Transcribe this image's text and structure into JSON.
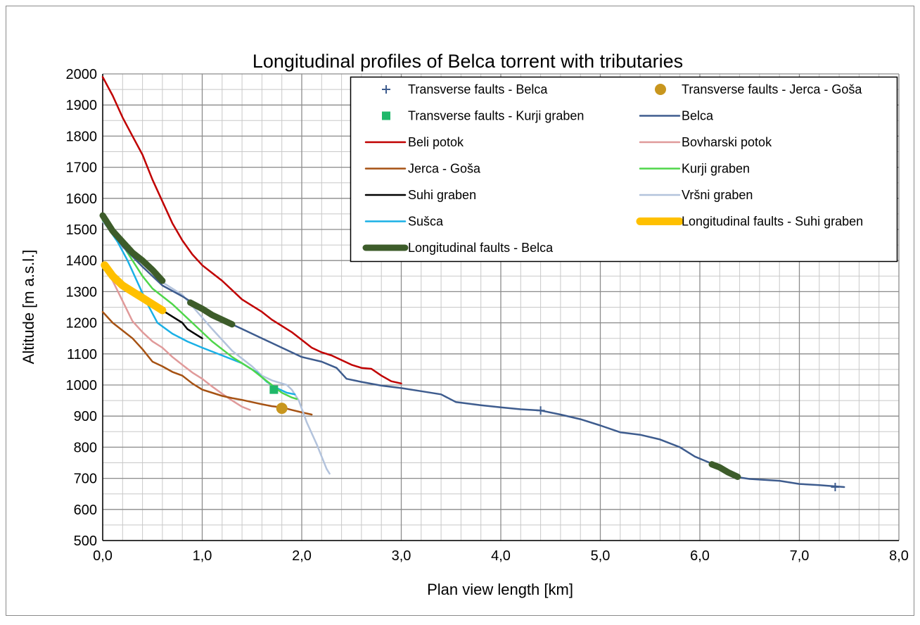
{
  "chart_data": {
    "type": "line",
    "title": "Longitudinal profiles of Belca torrent with tributaries",
    "xlabel": "Plan view length [km]",
    "ylabel": "Altitude [m a.s.l.]",
    "xlim": [
      0,
      8
    ],
    "ylim": [
      500,
      2000
    ],
    "x_ticks": [
      0,
      1,
      2,
      3,
      4,
      5,
      6,
      7,
      8
    ],
    "x_tick_labels": [
      "0,0",
      "1,0",
      "2,0",
      "3,0",
      "4,0",
      "5,0",
      "6,0",
      "7,0",
      "8,0"
    ],
    "y_ticks": [
      500,
      600,
      700,
      800,
      900,
      1000,
      1100,
      1200,
      1300,
      1400,
      1500,
      1600,
      1700,
      1800,
      1900,
      2000
    ],
    "y_tick_labels": [
      "500",
      "600",
      "700",
      "800",
      "900",
      "1000",
      "1100",
      "1200",
      "1300",
      "1400",
      "1500",
      "1600",
      "1700",
      "1800",
      "1900",
      "2000"
    ],
    "grid": true,
    "minor_grid": true,
    "legend_position": "top-right",
    "series": [
      {
        "name": "Transverse faults - Belca",
        "kind": "marker",
        "marker": "plus",
        "color": "#3e5c8e",
        "points": [
          [
            4.4,
            918
          ],
          [
            7.36,
            672
          ]
        ]
      },
      {
        "name": "Transverse faults - Jerca - Goša",
        "kind": "marker",
        "marker": "circle",
        "color": "#c8961e",
        "points": [
          [
            1.8,
            925
          ]
        ]
      },
      {
        "name": "Transverse faults - Kurji graben",
        "kind": "marker",
        "marker": "square",
        "color": "#1fb86a",
        "points": [
          [
            1.72,
            985
          ]
        ]
      },
      {
        "name": "Belca",
        "kind": "line",
        "color": "#3e5c8e",
        "width": 2.5,
        "points": [
          [
            0,
            1535
          ],
          [
            0.2,
            1445
          ],
          [
            0.4,
            1380
          ],
          [
            0.6,
            1320
          ],
          [
            0.8,
            1285
          ],
          [
            1.0,
            1245
          ],
          [
            1.2,
            1210
          ],
          [
            1.4,
            1180
          ],
          [
            1.6,
            1150
          ],
          [
            1.8,
            1120
          ],
          [
            2.0,
            1090
          ],
          [
            2.2,
            1075
          ],
          [
            2.35,
            1055
          ],
          [
            2.45,
            1020
          ],
          [
            2.6,
            1010
          ],
          [
            2.8,
            998
          ],
          [
            3.0,
            990
          ],
          [
            3.2,
            980
          ],
          [
            3.4,
            970
          ],
          [
            3.55,
            945
          ],
          [
            3.8,
            935
          ],
          [
            4.0,
            928
          ],
          [
            4.2,
            922
          ],
          [
            4.4,
            918
          ],
          [
            4.6,
            905
          ],
          [
            4.8,
            890
          ],
          [
            5.0,
            870
          ],
          [
            5.2,
            848
          ],
          [
            5.4,
            840
          ],
          [
            5.6,
            825
          ],
          [
            5.8,
            800
          ],
          [
            5.95,
            770
          ],
          [
            6.1,
            750
          ],
          [
            6.2,
            735
          ],
          [
            6.35,
            705
          ],
          [
            6.5,
            698
          ],
          [
            6.8,
            692
          ],
          [
            7.0,
            682
          ],
          [
            7.2,
            678
          ],
          [
            7.45,
            672
          ]
        ]
      },
      {
        "name": "Beli potok",
        "kind": "line",
        "color": "#c00000",
        "width": 2.5,
        "points": [
          [
            0,
            1990
          ],
          [
            0.1,
            1930
          ],
          [
            0.2,
            1860
          ],
          [
            0.3,
            1800
          ],
          [
            0.4,
            1740
          ],
          [
            0.5,
            1660
          ],
          [
            0.6,
            1590
          ],
          [
            0.7,
            1520
          ],
          [
            0.8,
            1465
          ],
          [
            0.9,
            1420
          ],
          [
            1.0,
            1385
          ],
          [
            1.1,
            1360
          ],
          [
            1.2,
            1335
          ],
          [
            1.3,
            1305
          ],
          [
            1.4,
            1275
          ],
          [
            1.5,
            1255
          ],
          [
            1.6,
            1235
          ],
          [
            1.7,
            1210
          ],
          [
            1.8,
            1190
          ],
          [
            1.9,
            1170
          ],
          [
            2.0,
            1145
          ],
          [
            2.1,
            1120
          ],
          [
            2.2,
            1105
          ],
          [
            2.3,
            1095
          ],
          [
            2.4,
            1080
          ],
          [
            2.5,
            1065
          ],
          [
            2.6,
            1055
          ],
          [
            2.7,
            1052
          ],
          [
            2.8,
            1030
          ],
          [
            2.9,
            1012
          ],
          [
            3.0,
            1005
          ]
        ]
      },
      {
        "name": "Bovharski potok",
        "kind": "line",
        "color": "#e09a9a",
        "width": 2.5,
        "points": [
          [
            0,
            1385
          ],
          [
            0.1,
            1335
          ],
          [
            0.2,
            1270
          ],
          [
            0.3,
            1205
          ],
          [
            0.4,
            1170
          ],
          [
            0.5,
            1140
          ],
          [
            0.6,
            1120
          ],
          [
            0.7,
            1090
          ],
          [
            0.8,
            1065
          ],
          [
            0.9,
            1040
          ],
          [
            1.0,
            1020
          ],
          [
            1.1,
            995
          ],
          [
            1.2,
            972
          ],
          [
            1.3,
            950
          ],
          [
            1.4,
            930
          ],
          [
            1.48,
            920
          ]
        ]
      },
      {
        "name": "Jerca - Goša",
        "kind": "line",
        "color": "#a65213",
        "width": 2.5,
        "points": [
          [
            0,
            1235
          ],
          [
            0.1,
            1200
          ],
          [
            0.2,
            1175
          ],
          [
            0.3,
            1150
          ],
          [
            0.4,
            1115
          ],
          [
            0.5,
            1075
          ],
          [
            0.6,
            1060
          ],
          [
            0.7,
            1042
          ],
          [
            0.8,
            1030
          ],
          [
            0.9,
            1005
          ],
          [
            1.0,
            985
          ],
          [
            1.1,
            975
          ],
          [
            1.2,
            965
          ],
          [
            1.3,
            958
          ],
          [
            1.4,
            952
          ],
          [
            1.5,
            945
          ],
          [
            1.6,
            938
          ],
          [
            1.7,
            932
          ],
          [
            1.8,
            928
          ],
          [
            1.9,
            920
          ],
          [
            2.0,
            912
          ],
          [
            2.1,
            905
          ]
        ]
      },
      {
        "name": "Kurji graben",
        "kind": "line",
        "color": "#4fd64a",
        "width": 2.5,
        "points": [
          [
            0,
            1530
          ],
          [
            0.2,
            1450
          ],
          [
            0.4,
            1350
          ],
          [
            0.5,
            1310
          ],
          [
            0.7,
            1260
          ],
          [
            0.9,
            1200
          ],
          [
            1.1,
            1140
          ],
          [
            1.3,
            1090
          ],
          [
            1.5,
            1050
          ],
          [
            1.6,
            1025
          ],
          [
            1.7,
            1000
          ],
          [
            1.8,
            975
          ],
          [
            1.9,
            960
          ],
          [
            1.95,
            955
          ]
        ]
      },
      {
        "name": "Suhi graben",
        "kind": "line",
        "color": "#000000",
        "width": 2.5,
        "points": [
          [
            0.6,
            1240
          ],
          [
            0.7,
            1220
          ],
          [
            0.8,
            1200
          ],
          [
            0.85,
            1180
          ],
          [
            0.9,
            1170
          ],
          [
            1.0,
            1150
          ]
        ]
      },
      {
        "name": "Vršni graben",
        "kind": "line",
        "color": "#b3c3dc",
        "width": 2.5,
        "points": [
          [
            0,
            1525
          ],
          [
            0.2,
            1450
          ],
          [
            0.4,
            1395
          ],
          [
            0.6,
            1330
          ],
          [
            0.8,
            1290
          ],
          [
            0.95,
            1235
          ],
          [
            1.1,
            1180
          ],
          [
            1.3,
            1110
          ],
          [
            1.5,
            1060
          ],
          [
            1.6,
            1030
          ],
          [
            1.7,
            1015
          ],
          [
            1.85,
            1000
          ],
          [
            1.9,
            985
          ],
          [
            1.97,
            950
          ],
          [
            2.05,
            880
          ],
          [
            2.15,
            810
          ],
          [
            2.25,
            730
          ],
          [
            2.28,
            715
          ]
        ]
      },
      {
        "name": "Sušca",
        "kind": "line",
        "color": "#1ab0e6",
        "width": 2.5,
        "points": [
          [
            0,
            1530
          ],
          [
            0.15,
            1460
          ],
          [
            0.25,
            1400
          ],
          [
            0.35,
            1330
          ],
          [
            0.45,
            1260
          ],
          [
            0.55,
            1200
          ],
          [
            0.7,
            1165
          ],
          [
            0.85,
            1140
          ],
          [
            1.0,
            1120
          ],
          [
            1.2,
            1095
          ],
          [
            1.4,
            1070
          ],
          [
            1.55,
            1040
          ],
          [
            1.65,
            1010
          ],
          [
            1.75,
            990
          ],
          [
            1.85,
            975
          ],
          [
            1.93,
            970
          ]
        ]
      },
      {
        "name": "Longitudinal faults - Suhi graben",
        "kind": "line",
        "color": "#ffc000",
        "width": 11,
        "points": [
          [
            0.02,
            1385
          ],
          [
            0.1,
            1350
          ],
          [
            0.2,
            1320
          ],
          [
            0.3,
            1300
          ],
          [
            0.4,
            1280
          ],
          [
            0.5,
            1260
          ],
          [
            0.6,
            1240
          ]
        ]
      },
      {
        "name": "Longitudinal faults - Belca",
        "kind": "line",
        "color": "#3d5c2a",
        "width": 9,
        "segments": [
          [
            [
              0,
              1545
            ],
            [
              0.1,
              1495
            ],
            [
              0.2,
              1460
            ],
            [
              0.3,
              1425
            ],
            [
              0.4,
              1400
            ],
            [
              0.5,
              1370
            ],
            [
              0.6,
              1335
            ]
          ],
          [
            [
              0.88,
              1265
            ],
            [
              1.0,
              1245
            ],
            [
              1.1,
              1225
            ],
            [
              1.2,
              1210
            ],
            [
              1.3,
              1195
            ]
          ],
          [
            [
              6.12,
              745
            ],
            [
              6.2,
              735
            ],
            [
              6.28,
              720
            ],
            [
              6.38,
              705
            ]
          ]
        ]
      }
    ]
  }
}
